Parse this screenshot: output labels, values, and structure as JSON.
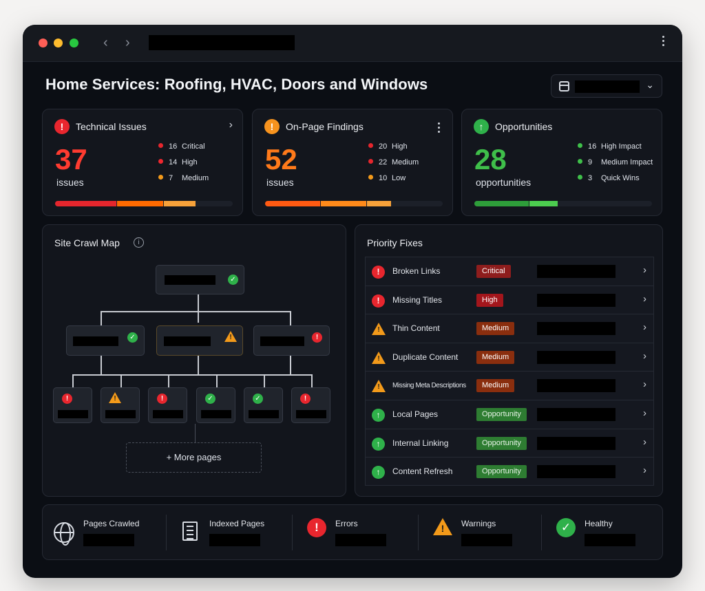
{
  "window": {
    "nav_back": "‹",
    "nav_forward": "›"
  },
  "header": {
    "title": "Home Services: Roofing, HVAC, Doors and Windows",
    "date_chevron": "⌄"
  },
  "cards": {
    "technical": {
      "icon": "!",
      "title": "Technical Issues",
      "action": "›",
      "count": "37",
      "unit": "issues",
      "accent": "#ff3b30",
      "breakdown": [
        {
          "n": "16",
          "label": "Critical",
          "color": "#e5262d"
        },
        {
          "n": "14",
          "label": "High",
          "color": "#f0272f"
        },
        {
          "n": "7",
          "label": "Medium",
          "color": "#f39a1a"
        }
      ]
    },
    "onpage": {
      "icon": "!",
      "title": "On-Page Findings",
      "count": "52",
      "unit": "issues",
      "accent": "#ff7a1a",
      "breakdown": [
        {
          "n": "20",
          "label": "High",
          "color": "#e5262d"
        },
        {
          "n": "22",
          "label": "Medium",
          "color": "#e5262d"
        },
        {
          "n": "10",
          "label": "Low",
          "color": "#f39a1a"
        }
      ]
    },
    "opportunities": {
      "icon": "↑",
      "title": "Opportunities",
      "count": "28",
      "unit": "opportunities",
      "accent": "#3fbf4a",
      "breakdown": [
        {
          "n": "16",
          "label": "High Impact",
          "color": "#3fbf4a"
        },
        {
          "n": "9",
          "label": "Medium Impact",
          "color": "#3fbf4a"
        },
        {
          "n": "3",
          "label": "Quick Wins",
          "color": "#3fbf4a"
        }
      ]
    }
  },
  "crawl_map": {
    "title": "Site Crawl Map",
    "info_icon": "i",
    "more_pages": "+ More pages"
  },
  "priority_fixes": {
    "title": "Priority Fixes",
    "items": [
      {
        "label": "Broken Links",
        "tag": "Critical",
        "kind": "error"
      },
      {
        "label": "Missing Titles",
        "tag": "High",
        "kind": "error"
      },
      {
        "label": "Thin Content",
        "tag": "Medium",
        "kind": "warning"
      },
      {
        "label": "Duplicate Content",
        "tag": "Medium",
        "kind": "warning"
      },
      {
        "label": "Missing Meta Descriptions",
        "tag": "Medium",
        "kind": "warning"
      },
      {
        "label": "Local Pages",
        "tag": "Opportunity",
        "kind": "opportunity"
      },
      {
        "label": "Internal Linking",
        "tag": "Opportunity",
        "kind": "opportunity"
      },
      {
        "label": "Content Refresh",
        "tag": "Opportunity",
        "kind": "opportunity"
      }
    ],
    "chevron": "›"
  },
  "stats": [
    {
      "label": "Pages Crawled",
      "icon": "globe-icon"
    },
    {
      "label": "Indexed Pages",
      "icon": "document-icon"
    },
    {
      "label": "Errors",
      "icon": "error-icon"
    },
    {
      "label": "Warnings",
      "icon": "warning-icon"
    },
    {
      "label": "Healthy",
      "icon": "check-circle-icon"
    }
  ]
}
